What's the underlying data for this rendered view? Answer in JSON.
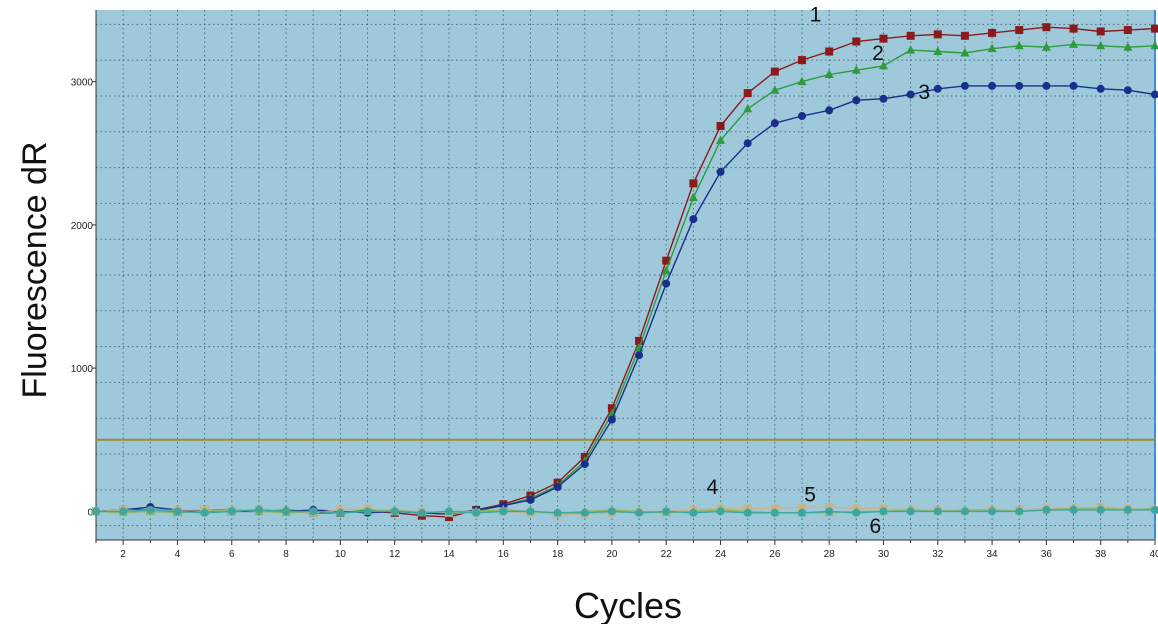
{
  "chart_data": {
    "type": "line",
    "title": "",
    "xlabel": "Cycles",
    "ylabel": "Fluorescence dR",
    "xlim": [
      1,
      40
    ],
    "ylim": [
      -200,
      3500
    ],
    "x_ticks": [
      2,
      4,
      6,
      8,
      10,
      12,
      14,
      16,
      18,
      20,
      22,
      24,
      26,
      28,
      30,
      32,
      34,
      36,
      38,
      40
    ],
    "x_tick_labels": [
      "2",
      "4",
      "6",
      "8",
      "10",
      "12",
      "14",
      "16",
      "18",
      "20",
      "22",
      "24",
      "26",
      "28",
      "30",
      "32",
      "34",
      "36",
      "38",
      "40"
    ],
    "y_ticks": [
      0,
      1000,
      2000,
      3000
    ],
    "y_tick_labels": [
      "0",
      "1000",
      "2000",
      "3000"
    ],
    "grid": true,
    "threshold": 500,
    "plot_background": "#9ec9db",
    "threshold_color": "#a08a32",
    "x": [
      1,
      2,
      3,
      4,
      5,
      6,
      7,
      8,
      9,
      10,
      11,
      12,
      13,
      14,
      15,
      16,
      17,
      18,
      19,
      20,
      21,
      22,
      23,
      24,
      25,
      26,
      27,
      28,
      29,
      30,
      31,
      32,
      33,
      34,
      35,
      36,
      37,
      38,
      39,
      40
    ],
    "series": [
      {
        "label": "1",
        "color": "#8b1a1a",
        "marker": "square",
        "values": [
          0,
          10,
          10,
          0,
          10,
          0,
          10,
          0,
          -10,
          -10,
          0,
          -10,
          -30,
          -40,
          10,
          50,
          110,
          200,
          380,
          720,
          1190,
          1750,
          2290,
          2690,
          2920,
          3070,
          3150,
          3210,
          3280,
          3300,
          3320,
          3330,
          3320,
          3340,
          3360,
          3380,
          3370,
          3350,
          3360,
          3370
        ]
      },
      {
        "label": "2",
        "color": "#2e9b3e",
        "marker": "triangle",
        "values": [
          0,
          10,
          0,
          0,
          10,
          10,
          0,
          10,
          0,
          -10,
          10,
          0,
          -10,
          -20,
          0,
          40,
          90,
          180,
          350,
          680,
          1140,
          1680,
          2190,
          2590,
          2810,
          2940,
          3000,
          3050,
          3080,
          3110,
          3220,
          3210,
          3200,
          3230,
          3250,
          3240,
          3260,
          3250,
          3240,
          3250
        ]
      },
      {
        "label": "3",
        "color": "#1a2f8c",
        "marker": "circle",
        "values": [
          0,
          10,
          30,
          10,
          0,
          0,
          0,
          0,
          10,
          0,
          -10,
          0,
          -10,
          -20,
          10,
          40,
          80,
          170,
          330,
          640,
          1090,
          1590,
          2040,
          2370,
          2570,
          2710,
          2760,
          2800,
          2870,
          2880,
          2910,
          2950,
          2970,
          2970,
          2970,
          2970,
          2970,
          2950,
          2940,
          2910
        ]
      },
      {
        "label": "4",
        "color": "#c8b48c",
        "marker": "square",
        "values": [
          0,
          10,
          0,
          10,
          10,
          0,
          10,
          0,
          -10,
          10,
          20,
          0,
          0,
          -10,
          -10,
          0,
          -10,
          -20,
          -20,
          -10,
          0,
          0,
          10,
          20,
          20,
          20,
          30,
          30,
          20,
          20,
          10,
          10,
          0,
          10,
          10,
          20,
          20,
          30,
          20,
          10
        ]
      },
      {
        "label": "5",
        "color": "#8fb46a",
        "marker": "triangle",
        "values": [
          0,
          -10,
          0,
          -10,
          0,
          10,
          0,
          -10,
          0,
          -10,
          0,
          10,
          -10,
          0,
          0,
          10,
          0,
          -10,
          0,
          10,
          0,
          -10,
          0,
          10,
          0,
          -10,
          -10,
          -10,
          0,
          0,
          10,
          0,
          10,
          10,
          0,
          10,
          20,
          20,
          10,
          20
        ]
      },
      {
        "label": "6",
        "color": "#3aa8a0",
        "marker": "circle",
        "values": [
          0,
          0,
          10,
          0,
          -10,
          0,
          10,
          0,
          0,
          -10,
          0,
          0,
          -10,
          0,
          -10,
          0,
          0,
          -10,
          -10,
          0,
          -10,
          0,
          -10,
          0,
          -10,
          -10,
          -10,
          0,
          -10,
          0,
          0,
          0,
          0,
          0,
          0,
          10,
          10,
          10,
          10,
          10
        ]
      }
    ],
    "curve_labels": [
      {
        "text": "1",
        "x": 27.5,
        "y": 3420
      },
      {
        "text": "2",
        "x": 29.8,
        "y": 3150
      },
      {
        "text": "3",
        "x": 31.5,
        "y": 2880
      },
      {
        "text": "4",
        "x": 23.7,
        "y": 120
      },
      {
        "text": "5",
        "x": 27.3,
        "y": 70
      },
      {
        "text": "6",
        "x": 29.7,
        "y": -150
      }
    ]
  }
}
